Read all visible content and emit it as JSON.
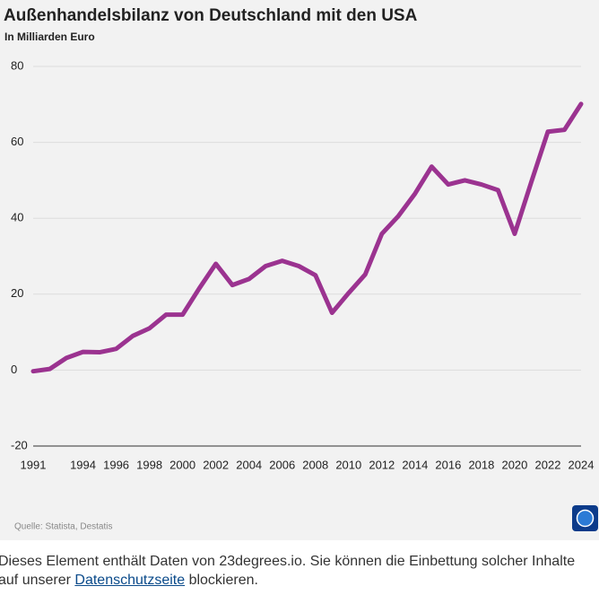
{
  "chart_data": {
    "type": "line",
    "title": "Außenhandelsbilanz von Deutschland mit den USA",
    "subtitle": "In Milliarden Euro",
    "source": "Quelle: Statista, Destatis",
    "x": [
      1991,
      1992,
      1993,
      1994,
      1995,
      1996,
      1997,
      1998,
      1999,
      2000,
      2001,
      2002,
      2003,
      2004,
      2005,
      2006,
      2007,
      2008,
      2009,
      2010,
      2011,
      2012,
      2013,
      2014,
      2015,
      2016,
      2017,
      2018,
      2019,
      2020,
      2021,
      2022,
      2023,
      2024
    ],
    "series": [
      {
        "color": "#9b3390",
        "values": [
          -0.3,
          0.3,
          3.2,
          4.8,
          4.7,
          5.6,
          9.0,
          11.0,
          14.6,
          14.6,
          21.5,
          28.0,
          22.4,
          24.0,
          27.4,
          28.8,
          27.4,
          25.0,
          15.1,
          20.3,
          25.2,
          35.9,
          40.6,
          46.5,
          53.6,
          48.9,
          50.0,
          48.9,
          47.4,
          35.9,
          49.5,
          62.8,
          63.3,
          70.1
        ]
      }
    ],
    "xlim": [
      1991,
      2024
    ],
    "xticks": [
      1991,
      1994,
      1996,
      1998,
      2000,
      2002,
      2004,
      2006,
      2008,
      2010,
      2012,
      2014,
      2016,
      2018,
      2020,
      2022,
      2024
    ],
    "ylim": [
      -20,
      80
    ],
    "yticks": [
      -20,
      0,
      20,
      40,
      60,
      80
    ],
    "grid": true
  },
  "notice": {
    "before": "Dieses Element enthält Daten von 23degrees.io. Sie können die Einbettung solcher Inhalte auf unserer",
    "link": "Datenschutzseite",
    "after": "blockieren."
  }
}
